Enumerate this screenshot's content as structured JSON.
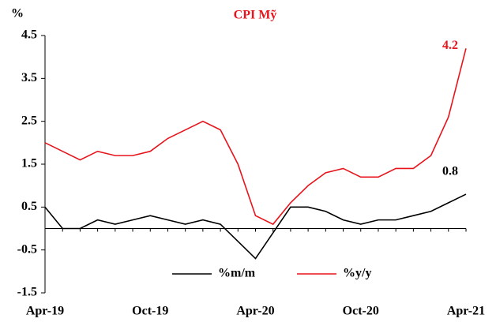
{
  "chart_data": {
    "type": "line",
    "title": "CPI Mỹ",
    "y_label": "%",
    "categories": [
      "Apr-19",
      null,
      null,
      null,
      null,
      null,
      "Oct-19",
      null,
      null,
      null,
      null,
      null,
      "Apr-20",
      null,
      null,
      null,
      null,
      null,
      "Oct-20",
      null,
      null,
      null,
      null,
      null,
      "Apr-21"
    ],
    "series": [
      {
        "name": "%m/m",
        "color": "#000000",
        "values": [
          0.5,
          0.0,
          0.0,
          0.2,
          0.1,
          0.2,
          0.3,
          0.2,
          0.1,
          0.2,
          0.1,
          -0.3,
          -0.7,
          -0.1,
          0.5,
          0.5,
          0.4,
          0.2,
          0.1,
          0.2,
          0.2,
          0.3,
          0.4,
          0.6,
          0.8
        ]
      },
      {
        "name": "%y/y",
        "color": "#e8141c",
        "values": [
          2.0,
          1.8,
          1.6,
          1.8,
          1.7,
          1.7,
          1.8,
          2.1,
          2.3,
          2.5,
          2.3,
          1.5,
          0.3,
          0.1,
          0.6,
          1.0,
          1.3,
          1.4,
          1.2,
          1.2,
          1.4,
          1.4,
          1.7,
          2.6,
          4.2
        ]
      }
    ],
    "ylim": [
      -1.5,
      4.5
    ],
    "yticks": [
      -1.5,
      -0.5,
      0.5,
      1.5,
      2.5,
      3.5,
      4.5
    ],
    "grid": false,
    "legend": "bottom"
  }
}
